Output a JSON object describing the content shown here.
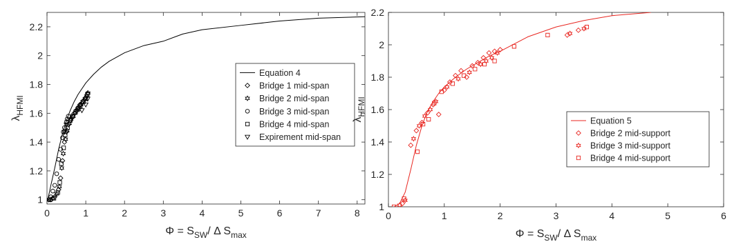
{
  "chart_data": [
    {
      "type": "scatter",
      "xlabel": {
        "main": "Φ = S",
        "sub1": "SW",
        "mid": "/ Δ S",
        "sub2": "max"
      },
      "ylabel": {
        "main": "λ",
        "sub": "HFMI"
      },
      "xlim": [
        0,
        8.2
      ],
      "ylim": [
        0.97,
        2.3
      ],
      "xticks": [
        0,
        1,
        2,
        3,
        4,
        5,
        6,
        7,
        8
      ],
      "xtick_labels": [
        "0",
        "1",
        "2",
        "3",
        "4",
        "5",
        "6",
        "7",
        "8"
      ],
      "yticks": [
        1,
        1.2,
        1.4,
        1.6,
        1.8,
        2,
        2.2
      ],
      "ytick_labels": [
        "1",
        "1.2",
        "1.4",
        "1.6",
        "1.8",
        "2",
        "2.2"
      ],
      "grid": false,
      "legend_position": "center-right",
      "color": "#000000",
      "series": [
        {
          "name": "Equation 4",
          "kind": "line",
          "x": [
            0.02,
            0.1,
            0.2,
            0.3,
            0.4,
            0.5,
            0.6,
            0.7,
            0.8,
            0.9,
            1.0,
            1.2,
            1.4,
            1.6,
            1.8,
            2.0,
            2.5,
            3.0,
            3.5,
            4.0,
            5.0,
            6.0,
            7.0,
            8.2
          ],
          "y": [
            1.0,
            1.1,
            1.22,
            1.35,
            1.46,
            1.55,
            1.62,
            1.68,
            1.73,
            1.77,
            1.81,
            1.87,
            1.92,
            1.96,
            1.99,
            2.02,
            2.07,
            2.1,
            2.15,
            2.18,
            2.21,
            2.24,
            2.26,
            2.27
          ]
        },
        {
          "name": "Bridge 1 mid-span",
          "kind": "points",
          "marker": "diamond",
          "x": [
            0.1,
            0.2,
            0.3,
            0.35,
            0.4,
            0.45,
            0.5,
            0.55,
            0.6,
            0.65,
            0.7,
            0.75,
            0.8,
            0.85,
            0.9,
            0.95,
            1.0,
            1.05
          ],
          "y": [
            1.0,
            1.02,
            1.07,
            1.15,
            1.27,
            1.4,
            1.47,
            1.52,
            1.55,
            1.57,
            1.6,
            1.62,
            1.64,
            1.66,
            1.67,
            1.69,
            1.71,
            1.74
          ]
        },
        {
          "name": "Bridge 2 mid-span",
          "kind": "points",
          "marker": "hexagram",
          "x": [
            0.05,
            0.15,
            0.25,
            0.32,
            0.38,
            0.42,
            0.48,
            0.52,
            0.58,
            0.62,
            0.68,
            0.72,
            0.78,
            0.82,
            0.88,
            0.92,
            0.98,
            1.02,
            1.06
          ],
          "y": [
            1.0,
            1.01,
            1.04,
            1.09,
            1.22,
            1.32,
            1.42,
            1.48,
            1.53,
            1.56,
            1.58,
            1.6,
            1.62,
            1.64,
            1.66,
            1.68,
            1.7,
            1.72,
            1.74
          ]
        },
        {
          "name": "Bridge 3 mid-span",
          "kind": "points",
          "marker": "circle",
          "x": [
            0.05,
            0.1,
            0.15,
            0.2,
            0.25,
            0.3,
            0.35,
            0.4,
            0.42,
            0.45,
            0.5,
            0.52,
            0.55
          ],
          "y": [
            1.0,
            1.02,
            1.06,
            1.1,
            1.18,
            1.28,
            1.35,
            1.43,
            1.47,
            1.5,
            1.54,
            1.56,
            1.58
          ]
        },
        {
          "name": "Bridge 4 mid-span",
          "kind": "points",
          "marker": "square",
          "x": [
            0.08,
            0.18,
            0.28,
            0.33,
            0.37,
            0.43,
            0.47,
            0.53,
            0.6,
            0.66,
            0.74,
            0.8,
            0.86,
            0.94,
            1.0,
            1.04
          ],
          "y": [
            1.0,
            1.01,
            1.05,
            1.12,
            1.25,
            1.36,
            1.45,
            1.5,
            1.55,
            1.58,
            1.61,
            1.63,
            1.65,
            1.68,
            1.7,
            1.73
          ]
        },
        {
          "name": "Expirement mid-span",
          "kind": "points",
          "marker": "triangle-down",
          "x": [
            0.45,
            0.5,
            0.9,
            1.0,
            1.05
          ],
          "y": [
            1.47,
            1.52,
            1.62,
            1.66,
            1.7
          ]
        }
      ]
    },
    {
      "type": "scatter",
      "xlabel": {
        "main": "Φ = S",
        "sub1": "SW",
        "mid": "/ Δ S",
        "sub2": "max"
      },
      "ylabel": {
        "main": "λ",
        "sub": "HFMI"
      },
      "xlim": [
        0,
        6
      ],
      "ylim": [
        1,
        2.2
      ],
      "xticks": [
        0,
        1,
        2,
        3,
        4,
        5,
        6
      ],
      "xtick_labels": [
        "0",
        "1",
        "2",
        "3",
        "4",
        "5",
        "6"
      ],
      "yticks": [
        1,
        1.2,
        1.4,
        1.6,
        1.8,
        2,
        2.2
      ],
      "ytick_labels": [
        "1",
        "1.2",
        "1.4",
        "1.6",
        "1.8",
        "2",
        "2.2"
      ],
      "grid": false,
      "legend_position": "bottom-right",
      "color": "#e8251f",
      "series": [
        {
          "name": "Equation 5",
          "kind": "line",
          "x": [
            0.1,
            0.2,
            0.3,
            0.4,
            0.5,
            0.6,
            0.7,
            0.8,
            0.9,
            1.0,
            1.2,
            1.4,
            1.6,
            1.8,
            2.0,
            2.5,
            3.0,
            3.5,
            4.0,
            4.7
          ],
          "y": [
            1.0,
            1.02,
            1.09,
            1.23,
            1.38,
            1.5,
            1.59,
            1.65,
            1.7,
            1.74,
            1.8,
            1.85,
            1.89,
            1.93,
            1.96,
            2.05,
            2.11,
            2.15,
            2.18,
            2.2
          ]
        },
        {
          "name": "Bridge 2 mid-support",
          "kind": "points",
          "marker": "diamond",
          "x": [
            0.25,
            0.4,
            0.5,
            0.6,
            0.7,
            0.8,
            0.9,
            1.0,
            1.1,
            1.2,
            1.3,
            1.4,
            1.5,
            1.6,
            1.7,
            1.8,
            1.9,
            2.0,
            3.2,
            3.4
          ],
          "y": [
            1.02,
            1.38,
            1.47,
            1.52,
            1.58,
            1.63,
            1.57,
            1.72,
            1.77,
            1.81,
            1.84,
            1.8,
            1.87,
            1.89,
            1.92,
            1.95,
            1.96,
            1.97,
            2.06,
            2.09
          ]
        },
        {
          "name": "Bridge 3 mid-support",
          "kind": "points",
          "marker": "hexagram",
          "x": [
            0.2,
            0.3,
            0.45,
            0.55,
            0.65,
            0.75,
            0.85,
            1.05,
            1.25,
            1.45,
            1.65,
            1.75,
            1.85,
            1.95,
            3.25,
            3.5
          ],
          "y": [
            1.01,
            1.04,
            1.42,
            1.5,
            1.56,
            1.6,
            1.65,
            1.74,
            1.79,
            1.83,
            1.88,
            1.9,
            1.92,
            1.95,
            2.07,
            2.1
          ]
        },
        {
          "name": "Bridge 4 mid-support",
          "kind": "points",
          "marker": "square",
          "x": [
            0.1,
            0.28,
            0.52,
            0.62,
            0.72,
            0.82,
            0.95,
            1.15,
            1.35,
            1.55,
            1.72,
            1.9,
            2.25,
            2.85,
            3.55
          ],
          "y": [
            1.0,
            1.05,
            1.34,
            1.51,
            1.54,
            1.64,
            1.71,
            1.76,
            1.81,
            1.85,
            1.88,
            1.9,
            1.99,
            2.06,
            2.11
          ]
        }
      ]
    }
  ]
}
